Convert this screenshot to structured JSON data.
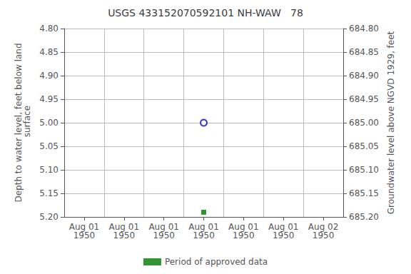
{
  "chart_data": {
    "type": "scatter",
    "title": "USGS 433152070592101 NH-WAW   78",
    "x_label": null,
    "y_label": "Depth to water level, feet below land\n surface",
    "y2_label": "Groundwater level above NGVD 1929, feet",
    "categories": [
      "Aug 01\n1950",
      "Aug 01\n1950",
      "Aug 01\n1950",
      "Aug 01\n1950",
      "Aug 01\n1950",
      "Aug 01\n1950",
      "Aug 02\n1950"
    ],
    "series": [
      {
        "color": "#0000cc",
        "marker": "open circle",
        "values": [
          null,
          null,
          null,
          5.0,
          null,
          null,
          null
        ]
      },
      {
        "name": "Period of approved data",
        "color": "#007700",
        "marker": "square",
        "values": [
          null,
          null,
          null,
          5.19,
          null,
          null,
          null
        ]
      }
    ],
    "ylim": [
      5.2,
      4.8
    ],
    "yticks": [
      {
        "value": 4.8,
        "label": "4.80"
      },
      4.85,
      {
        "value": 4.9,
        "label": "4.90"
      },
      4.95,
      {
        "value": 5.0,
        "label": "5.00"
      },
      5.05,
      {
        "value": 5.1,
        "label": "5.10"
      },
      5.15,
      {
        "value": 5.2,
        "label": "5.20"
      }
    ],
    "y2lim": [
      685.2,
      684.8
    ],
    "y2ticks": [
      {
        "value": 685.2,
        "label": "685.20"
      },
      685.15,
      {
        "value": 685.1,
        "label": "685.10"
      },
      685.05,
      {
        "value": 685.0,
        "label": "685.00"
      },
      684.95,
      {
        "value": 684.9,
        "label": "684.90"
      },
      684.85,
      {
        "value": 684.8,
        "label": "684.80"
      }
    ],
    "grid": true,
    "legend": "bottom"
  }
}
